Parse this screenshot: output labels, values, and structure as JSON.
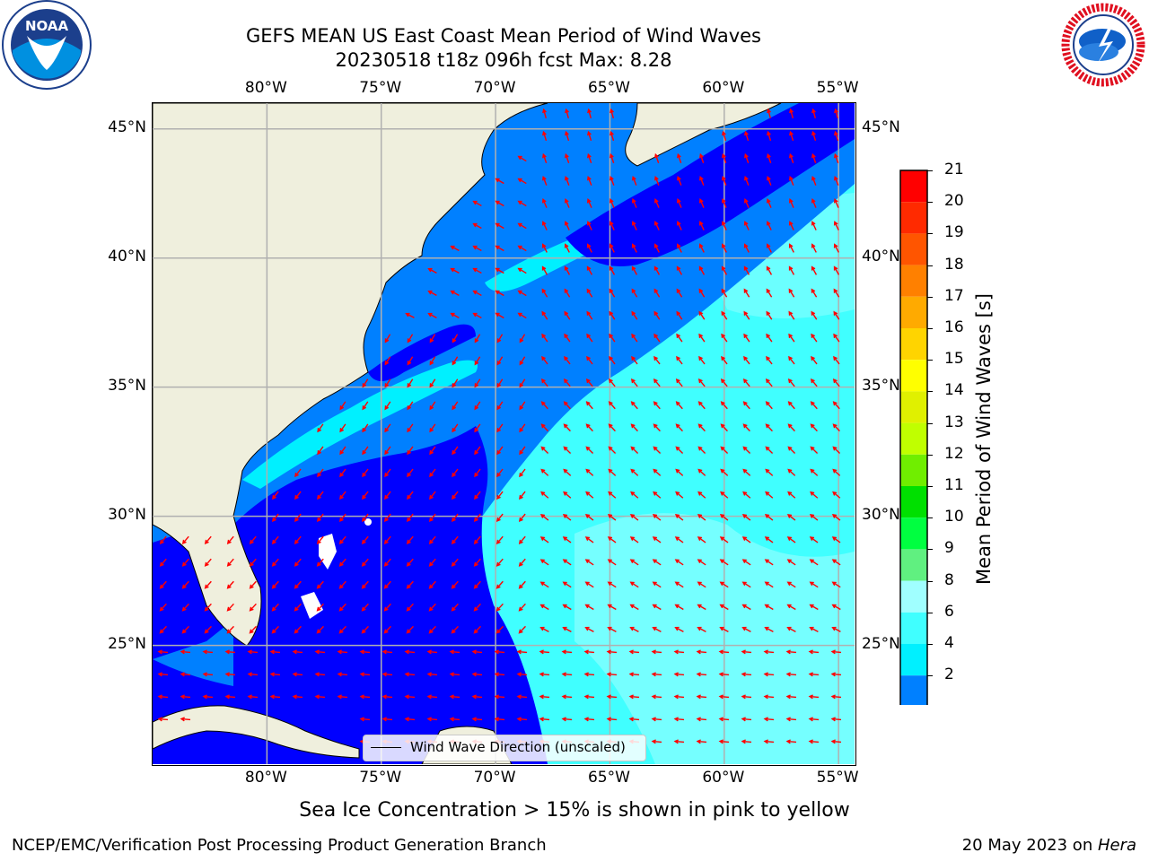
{
  "header": {
    "title_line1": "GEFS MEAN US East Coast Mean Period of Wind Waves",
    "title_line2": "20230518 t18z 096h fcst   Max: 8.28"
  },
  "logos": {
    "left": {
      "text": "NOAA",
      "ring_text": "NATIONAL OCEANIC AND ATMOSPHERIC ADMINISTRATION · U.S. DEPARTMENT OF COMMERCE"
    },
    "right": {
      "ring_text": "NATIONAL WEATHER SERVICE"
    }
  },
  "map": {
    "lon_ticks": [
      "80°W",
      "75°W",
      "70°W",
      "65°W",
      "60°W",
      "55°W"
    ],
    "lat_ticks": [
      "45°N",
      "40°N",
      "35°N",
      "30°N",
      "25°N"
    ],
    "lon_values": [
      -80,
      -75,
      -70,
      -65,
      -60,
      -55
    ],
    "lat_values": [
      45,
      40,
      35,
      30,
      25
    ],
    "extent": {
      "lon_min": -85,
      "lon_max": -54.3,
      "lat_min": 20.4,
      "lat_max": 46
    },
    "land_color": "#efefdd",
    "arrow_color": "#ff0000",
    "grid_color": "#b0b0b0",
    "legend_label": "Wind Wave Direction (unscaled)"
  },
  "colorbar": {
    "title": "Mean Period of Wind Waves [s]",
    "labels": [
      "21",
      "20",
      "19",
      "18",
      "17",
      "16",
      "15",
      "14",
      "13",
      "12",
      "11",
      "10",
      "9",
      "8",
      "6",
      "4",
      "2"
    ],
    "colors_top_to_bottom": [
      "#ff0000",
      "#ff2a00",
      "#ff5500",
      "#ff8000",
      "#ffaa00",
      "#ffd400",
      "#ffff00",
      "#e0f000",
      "#c0ff00",
      "#70ee00",
      "#00e000",
      "#00ff40",
      "#60f080",
      "#a0ffff",
      "#40ffff",
      "#00f0ff",
      "#0080ff"
    ],
    "extend_color": "#0000ff"
  },
  "footer": {
    "ice_note": "Sea Ice Concentration > 15% is shown in pink to yellow",
    "left": "NCEP/EMC/Verification Post Processing Product Generation Branch",
    "right_date": "20 May 2023 on ",
    "right_host": "Hera"
  }
}
